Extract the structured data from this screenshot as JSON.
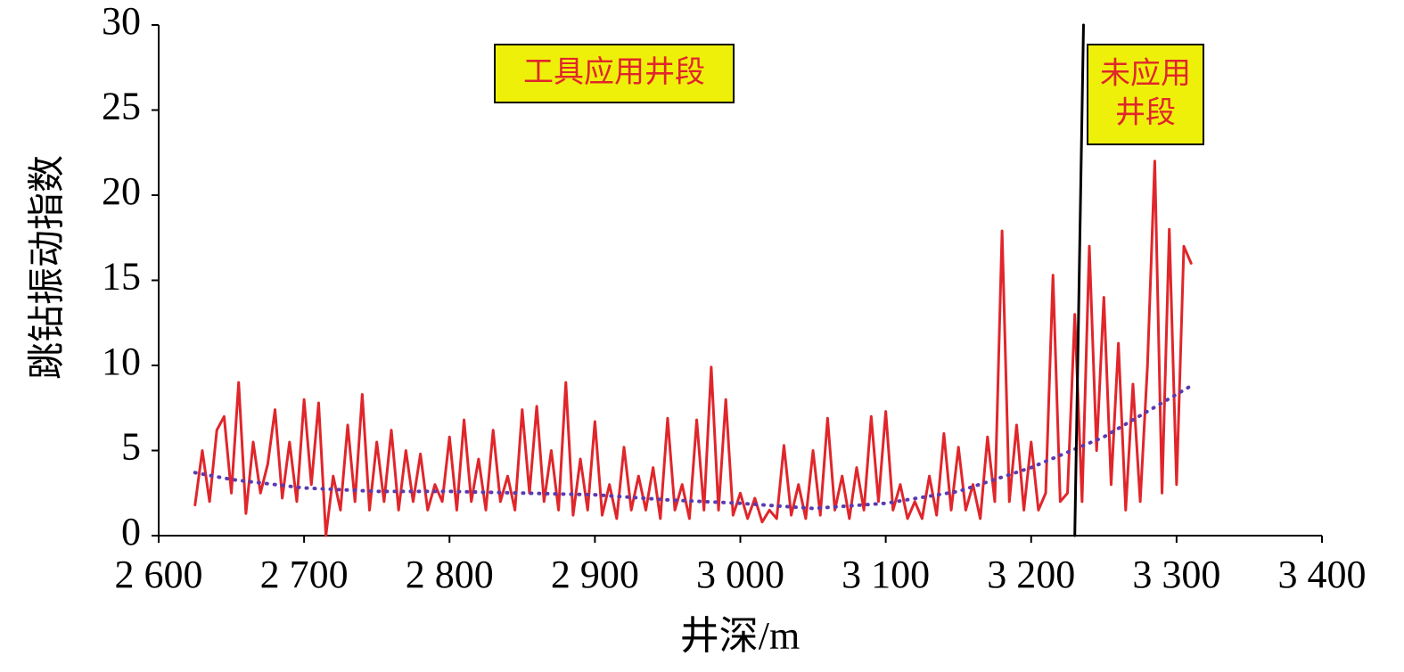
{
  "chart_data": {
    "type": "line",
    "xlabel": "井深/m",
    "ylabel": "跳钻振动指数",
    "xlim": [
      2600,
      3400
    ],
    "ylim": [
      0,
      30
    ],
    "xticks": [
      {
        "value": 2600,
        "label": "2 600"
      },
      {
        "value": 2700,
        "label": "2 700"
      },
      {
        "value": 2800,
        "label": "2 800"
      },
      {
        "value": 2900,
        "label": "2 900"
      },
      {
        "value": 3000,
        "label": "3 000"
      },
      {
        "value": 3100,
        "label": "3 100"
      },
      {
        "value": 3200,
        "label": "3 200"
      },
      {
        "value": 3300,
        "label": "3 300"
      },
      {
        "value": 3400,
        "label": "3 400"
      }
    ],
    "yticks": [
      0,
      5,
      10,
      15,
      20,
      25,
      30
    ],
    "annotations": [
      [
        "工具应用井段"
      ],
      [
        "未应用",
        "井段"
      ]
    ],
    "series": [
      {
        "color": "#e0262b",
        "style": "solid",
        "x": [
          2625,
          2630,
          2635,
          2640,
          2645,
          2650,
          2655,
          2660,
          2665,
          2670,
          2675,
          2680,
          2685,
          2690,
          2695,
          2700,
          2705,
          2710,
          2715,
          2720,
          2725,
          2730,
          2735,
          2740,
          2745,
          2750,
          2755,
          2760,
          2765,
          2770,
          2775,
          2780,
          2785,
          2790,
          2795,
          2800,
          2805,
          2810,
          2815,
          2820,
          2825,
          2830,
          2835,
          2840,
          2845,
          2850,
          2855,
          2860,
          2865,
          2870,
          2875,
          2880,
          2885,
          2890,
          2895,
          2900,
          2905,
          2910,
          2915,
          2920,
          2925,
          2930,
          2935,
          2940,
          2945,
          2950,
          2955,
          2960,
          2965,
          2970,
          2975,
          2980,
          2985,
          2990,
          2995,
          3000,
          3005,
          3010,
          3015,
          3020,
          3025,
          3030,
          3035,
          3040,
          3045,
          3050,
          3055,
          3060,
          3065,
          3070,
          3075,
          3080,
          3085,
          3090,
          3095,
          3100,
          3105,
          3110,
          3115,
          3120,
          3125,
          3130,
          3135,
          3140,
          3145,
          3150,
          3155,
          3160,
          3165,
          3170,
          3175,
          3180,
          3185,
          3190,
          3195,
          3200,
          3205,
          3210,
          3215,
          3220,
          3225,
          3230,
          3235,
          3240,
          3245,
          3250,
          3255,
          3260,
          3265,
          3270,
          3275,
          3280,
          3285,
          3290,
          3295,
          3300,
          3305,
          3310
        ],
        "values": [
          1.8,
          5,
          2,
          6.2,
          7,
          2.5,
          9,
          1.3,
          5.5,
          2.5,
          4.2,
          7.4,
          2.2,
          5.5,
          2,
          8,
          3,
          7.8,
          0,
          3.5,
          1.5,
          6.5,
          2,
          8.3,
          1.5,
          5.5,
          2,
          6.2,
          1.5,
          5,
          2,
          4.8,
          1.5,
          3,
          2,
          5.8,
          1.5,
          6.8,
          2,
          4.5,
          1.5,
          6.2,
          2,
          3.5,
          1.5,
          7.4,
          2.5,
          7.6,
          2,
          5,
          1.5,
          9,
          1.2,
          4.5,
          1.5,
          6.7,
          1.2,
          3,
          1,
          5.2,
          1.5,
          3.5,
          1.5,
          4,
          1,
          6.9,
          1.5,
          3,
          1,
          6.8,
          1.5,
          9.9,
          1.5,
          8,
          1.2,
          2.5,
          1,
          2.2,
          0.8,
          1.5,
          1,
          5.3,
          1.2,
          3,
          1,
          5,
          1.2,
          6.9,
          1.5,
          3.5,
          1,
          4,
          1.5,
          7,
          2,
          7.3,
          1.5,
          3,
          1,
          2,
          1,
          3.5,
          1.2,
          6,
          1.5,
          5.2,
          1.5,
          3,
          1,
          5.8,
          2,
          17.9,
          2,
          6.5,
          1.5,
          5.5,
          1.5,
          2.5,
          15.3,
          2,
          2.5,
          13,
          2,
          17,
          5,
          14,
          3,
          11.3,
          1.5,
          8.9,
          2,
          10,
          22,
          2.5,
          18,
          3,
          17,
          16
        ]
      },
      {
        "color": "#5b3bb0",
        "style": "dotted",
        "x": [
          2625,
          2650,
          2700,
          2750,
          2800,
          2850,
          2900,
          2950,
          3000,
          3050,
          3100,
          3150,
          3200,
          3250,
          3300,
          3310
        ],
        "values": [
          3.7,
          3.3,
          2.8,
          2.6,
          2.6,
          2.5,
          2.4,
          2.1,
          1.9,
          1.6,
          1.9,
          2.6,
          4,
          5.8,
          8.3,
          8.8
        ]
      },
      {
        "color": "#000000",
        "style": "solid",
        "x": [
          3230,
          3236
        ],
        "values": [
          0,
          30
        ]
      }
    ]
  }
}
